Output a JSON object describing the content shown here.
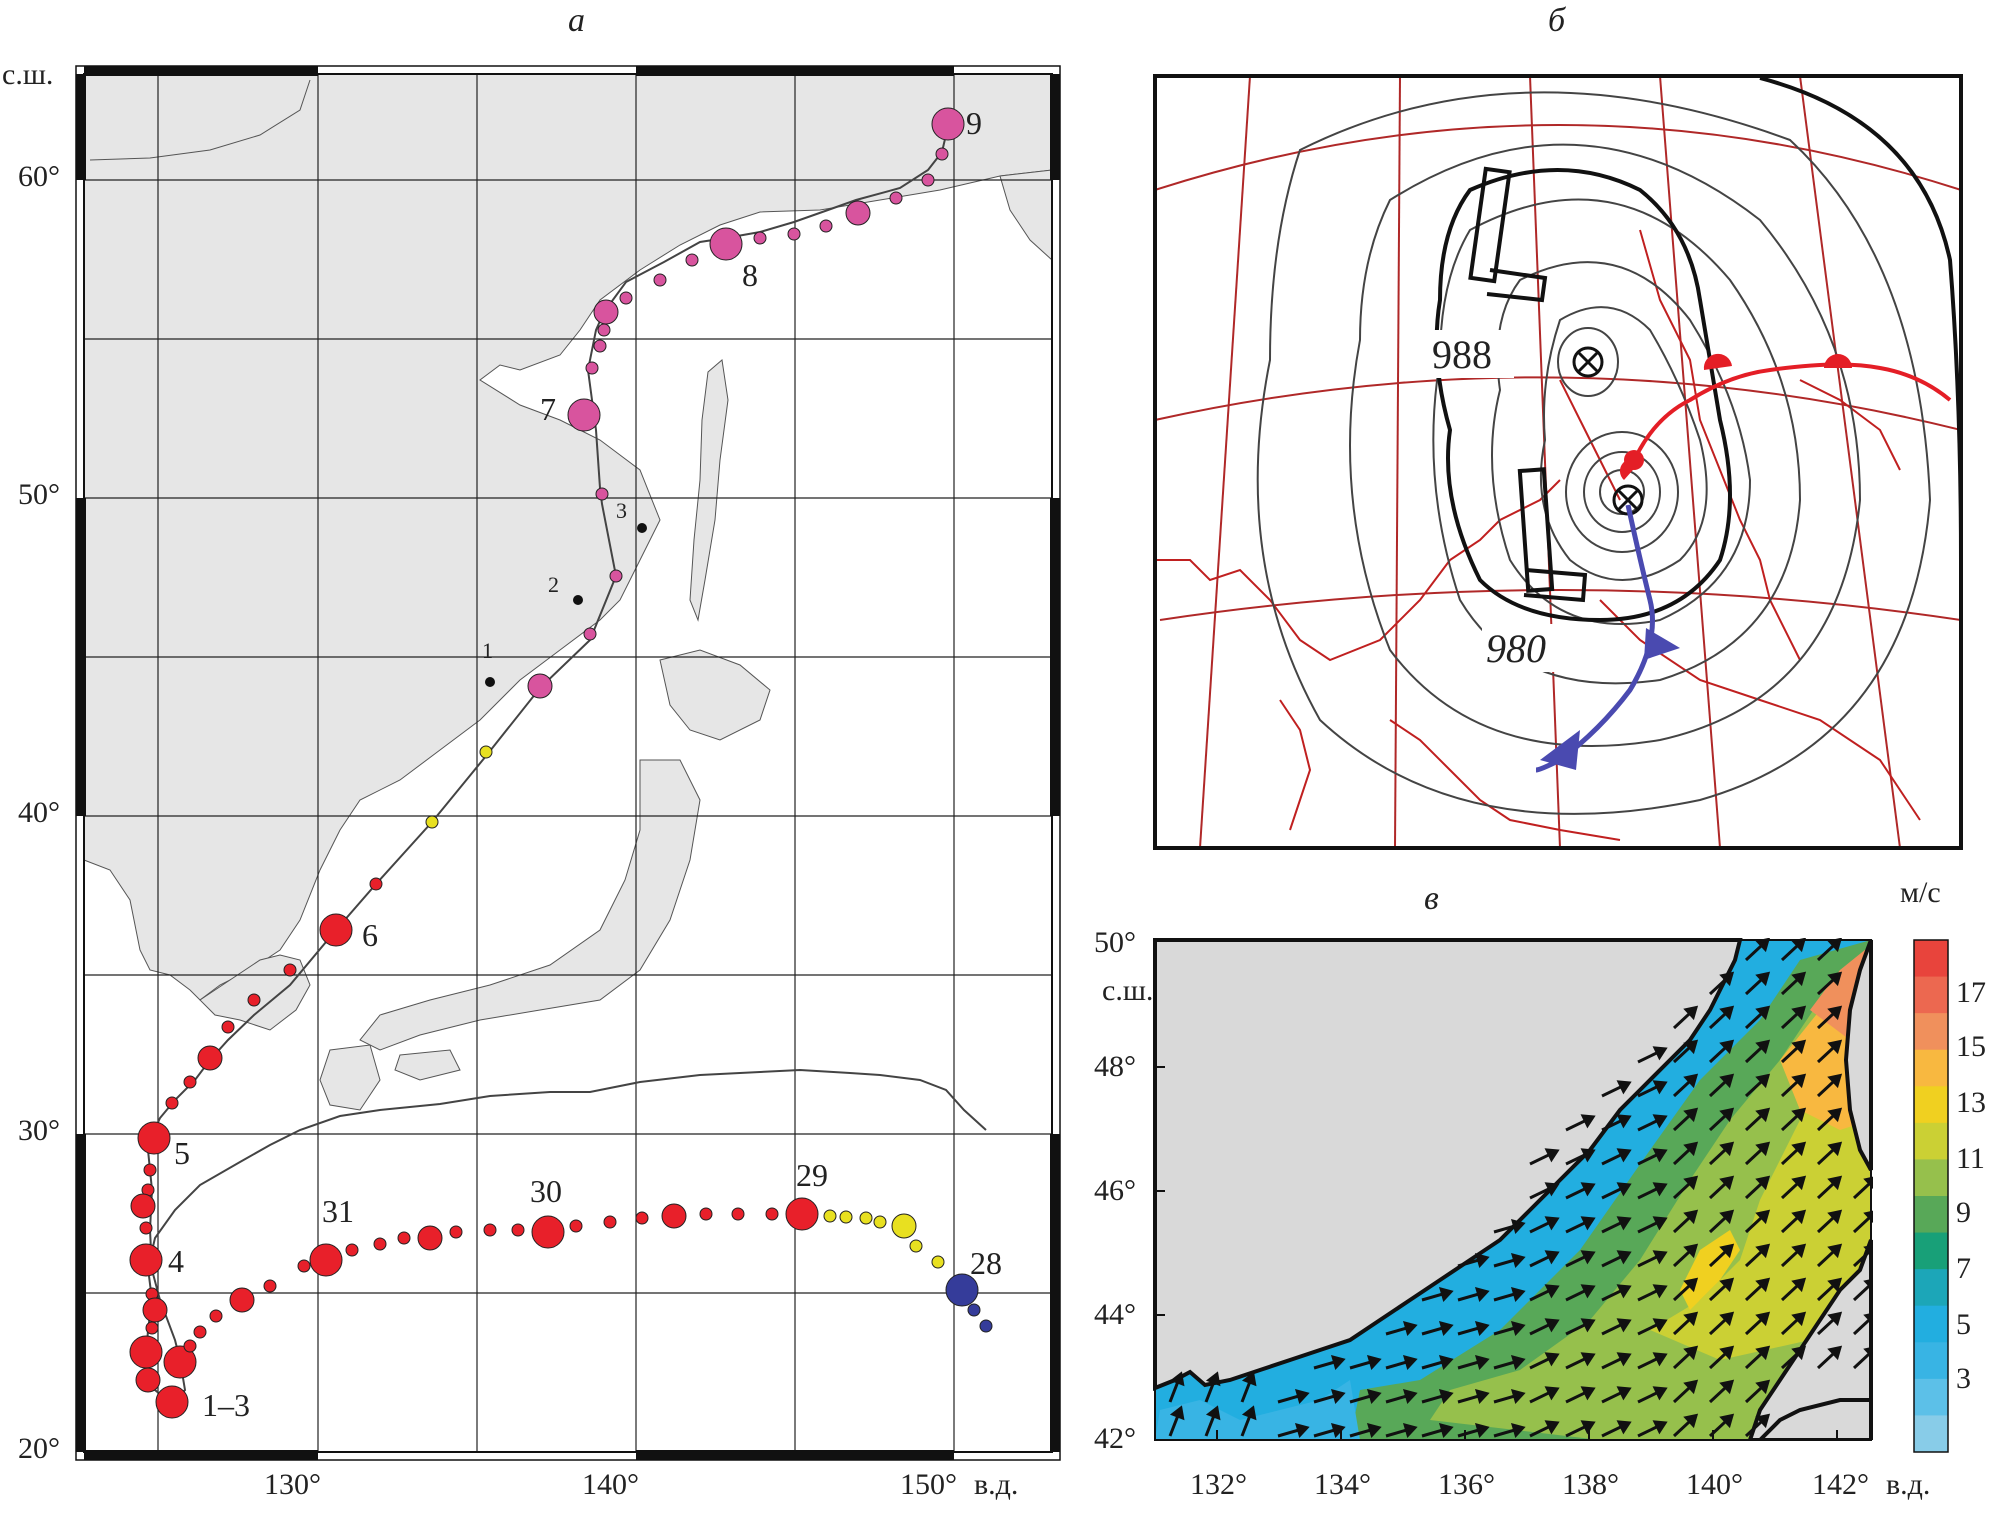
{
  "panels": {
    "a": {
      "letter": "а",
      "lat_unit": "с.ш.",
      "lon_unit": "в.д.",
      "lat_ticks": [
        "60°",
        "50°",
        "40°",
        "30°",
        "20°"
      ],
      "lon_ticks": [
        "130°",
        "140°",
        "150°"
      ],
      "track_day_labels": [
        "9",
        "8",
        "7",
        "6",
        "5",
        "4",
        "1–3",
        "31",
        "30",
        "29",
        "28"
      ],
      "station_labels": [
        "1",
        "2",
        "3"
      ],
      "colors": {
        "red_stage": "#e8202a",
        "yellow_stage": "#e8e020",
        "magenta_stage": "#d8549e",
        "blue_stage": "#353c9a",
        "land": "#e6e6e6",
        "sea": "#ffffff"
      }
    },
    "b": {
      "letter": "б",
      "isobar_labels": [
        "988",
        "980"
      ],
      "colors": {
        "warm_front": "#e41e26",
        "cold_front": "#4a4ab0",
        "grid": "#b02828",
        "coast": "#c02020"
      }
    },
    "c": {
      "letter": "в",
      "lat_unit": "с.ш.",
      "lon_unit": "в.д.",
      "lat_ticks": [
        "50°",
        "48°",
        "46°",
        "44°",
        "42°"
      ],
      "lon_ticks": [
        "132°",
        "134°",
        "136°",
        "138°",
        "140°",
        "142°"
      ],
      "colorbar": {
        "unit": "м/с",
        "labels": [
          "17",
          "15",
          "13",
          "11",
          "9",
          "7",
          "5",
          "3"
        ],
        "colors": [
          "#e8443c",
          "#ec6850",
          "#f0905c",
          "#f8b840",
          "#f0d020",
          "#cbd034",
          "#96c04c",
          "#58a858",
          "#18a078",
          "#1ca6b8",
          "#22aee0",
          "#38b4e4",
          "#5cc0e8",
          "#88cce8"
        ]
      }
    }
  }
}
